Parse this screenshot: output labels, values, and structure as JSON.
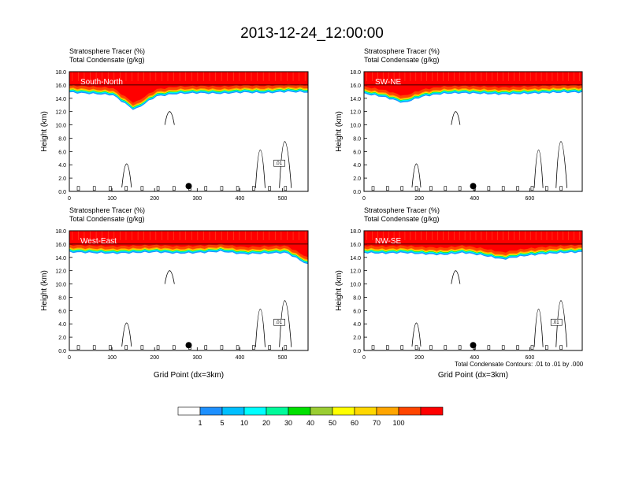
{
  "figure": {
    "title": "2013-12-24_12:00:00",
    "footnote": "Total Condensate Contours: .01 to .01 by .000",
    "colorbar": {
      "colors": [
        "#ffffff",
        "#1e90ff",
        "#00bfff",
        "#00ffff",
        "#00fa9a",
        "#00e000",
        "#9acd32",
        "#ffff00",
        "#ffd700",
        "#ffa500",
        "#ff4500",
        "#ff0000"
      ],
      "labels": [
        "1",
        "5",
        "10",
        "20",
        "30",
        "40",
        "50",
        "60",
        "70",
        "100"
      ]
    },
    "panel_field_colors": [
      "#ff0000",
      "#ff4500",
      "#ffa500",
      "#ffd700",
      "#ffff00",
      "#9acd32",
      "#00e000",
      "#00fa9a",
      "#00ffff",
      "#00bfff",
      "#1e90ff"
    ]
  },
  "chart_data": [
    {
      "type": "contour",
      "panel": "South-North",
      "label": "South-North",
      "title_line1": "Stratosphere Tracer   (%)",
      "title_line2": "Total Condensate   (g/kg)",
      "xlabel": "",
      "ylabel": "Height (km)",
      "xlim": [
        0,
        560
      ],
      "ylim": [
        0,
        18
      ],
      "x_ticks": [
        "0",
        "100",
        "200",
        "300",
        "400",
        "500"
      ],
      "y_ticks": [
        "0.0",
        "2.0",
        "4.0",
        "6.0",
        "8.0",
        "10.0",
        "12.0",
        "14.0",
        "16.0",
        "18.0"
      ],
      "tracer_base_km": [
        15.2,
        15.0,
        14.8,
        12.5,
        14.6,
        15.0,
        15.1,
        15.0,
        15.2,
        15.1,
        15.3,
        15.2
      ],
      "contour_label": ".01",
      "marker_x": 280
    },
    {
      "type": "contour",
      "panel": "SW-NE",
      "label": "SW-NE",
      "title_line1": "Stratosphere Tracer   (%)",
      "title_line2": "Total Condensate   (g/kg)",
      "xlabel": "",
      "ylabel": "Height (km)",
      "xlim": [
        0,
        790
      ],
      "ylim": [
        0,
        18
      ],
      "x_ticks": [
        "0",
        "200",
        "400",
        "600"
      ],
      "y_ticks": [
        "0.0",
        "2.0",
        "4.0",
        "6.0",
        "8.0",
        "10.0",
        "12.0",
        "14.0",
        "16.0",
        "18.0"
      ],
      "tracer_base_km": [
        15.0,
        14.5,
        13.6,
        14.6,
        15.0,
        15.1,
        15.0,
        14.9,
        15.0,
        15.1,
        15.2,
        15.2
      ],
      "contour_label": "",
      "marker_x": 395
    },
    {
      "type": "contour",
      "panel": "West-East",
      "label": "West-East",
      "title_line1": "Stratosphere Tracer   (%)",
      "title_line2": "Total Condensate   (g/kg)",
      "xlabel": "Grid Point (dx=3km)",
      "ylabel": "Height (km)",
      "xlim": [
        0,
        560
      ],
      "ylim": [
        0,
        18
      ],
      "x_ticks": [
        "0",
        "100",
        "200",
        "300",
        "400",
        "500"
      ],
      "y_ticks": [
        "0.0",
        "2.0",
        "4.0",
        "6.0",
        "8.0",
        "10.0",
        "12.0",
        "14.0",
        "16.0",
        "18.0"
      ],
      "tracer_base_km": [
        15.1,
        15.0,
        14.9,
        15.0,
        15.1,
        14.9,
        15.0,
        15.2,
        14.8,
        14.9,
        15.0,
        13.2
      ],
      "contour_label": ".01",
      "marker_x": 280
    },
    {
      "type": "contour",
      "panel": "NW-SE",
      "label": "NW-SE",
      "title_line1": "Stratosphere Tracer   (%)",
      "title_line2": "Total Condensate   (g/kg)",
      "xlabel": "Grid Point (dx=3km)",
      "ylabel": "Height (km)",
      "xlim": [
        0,
        790
      ],
      "ylim": [
        0,
        18
      ],
      "x_ticks": [
        "0",
        "200",
        "400",
        "600"
      ],
      "y_ticks": [
        "0.0",
        "2.0",
        "4.0",
        "6.0",
        "8.0",
        "10.0",
        "12.0",
        "14.0",
        "16.0",
        "18.0"
      ],
      "tracer_base_km": [
        15.0,
        14.9,
        15.0,
        14.8,
        14.7,
        15.0,
        14.6,
        14.0,
        14.5,
        14.8,
        15.0,
        15.1
      ],
      "contour_label": ".01",
      "marker_x": 395
    }
  ]
}
